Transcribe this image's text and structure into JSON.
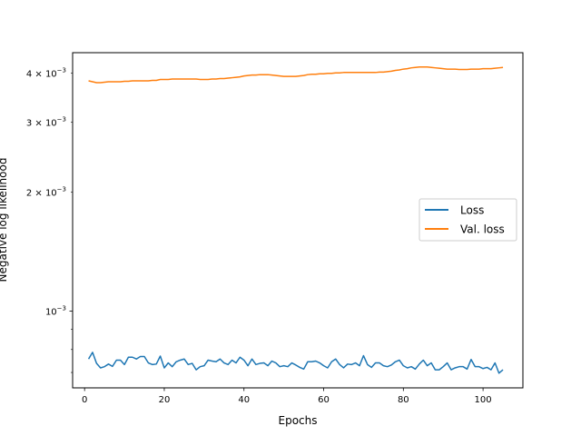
{
  "chart_data": {
    "type": "line",
    "xlabel": "Epochs",
    "ylabel": "Negative log likelihood",
    "xlim": [
      -3,
      110
    ],
    "ylim": [
      0.00064,
      0.0045
    ],
    "yscale": "log",
    "xticks": [
      0,
      20,
      40,
      60,
      80,
      100
    ],
    "xtick_labels": [
      "0",
      "20",
      "40",
      "60",
      "80",
      "100"
    ],
    "yticks_major": [
      0.001
    ],
    "yticks_major_labels": [
      {
        "mant": "10",
        "exp": "−3"
      }
    ],
    "yticks_minor": [
      0.0007,
      0.0008,
      0.0009,
      0.002,
      0.003,
      0.004
    ],
    "yticks_minor_labels": [
      {
        "value": 0.002,
        "mant": "2 × 10",
        "exp": "−3"
      },
      {
        "value": 0.003,
        "mant": "3 × 10",
        "exp": "−3"
      },
      {
        "value": 0.004,
        "mant": "4 × 10",
        "exp": "−3"
      }
    ],
    "legend": {
      "placement": "center-right",
      "entries": [
        "Loss",
        "Val. loss"
      ]
    },
    "grid": false,
    "x": [
      1,
      2,
      3,
      4,
      5,
      6,
      7,
      8,
      9,
      10,
      11,
      12,
      13,
      14,
      15,
      16,
      17,
      18,
      19,
      20,
      21,
      22,
      23,
      24,
      25,
      26,
      27,
      28,
      29,
      30,
      31,
      32,
      33,
      34,
      35,
      36,
      37,
      38,
      39,
      40,
      41,
      42,
      43,
      44,
      45,
      46,
      47,
      48,
      49,
      50,
      51,
      52,
      53,
      54,
      55,
      56,
      57,
      58,
      59,
      60,
      61,
      62,
      63,
      64,
      65,
      66,
      67,
      68,
      69,
      70,
      71,
      72,
      73,
      74,
      75,
      76,
      77,
      78,
      79,
      80,
      81,
      82,
      83,
      84,
      85,
      86,
      87,
      88,
      89,
      90,
      91,
      92,
      93,
      94,
      95,
      96,
      97,
      98,
      99,
      100,
      101,
      102,
      103,
      104,
      105
    ],
    "series": [
      {
        "name": "Loss",
        "color": "#1f77b4",
        "values": [
          0.000757,
          0.000787,
          0.000738,
          0.000719,
          0.000724,
          0.000735,
          0.000725,
          0.000752,
          0.000752,
          0.000733,
          0.000765,
          0.000765,
          0.000757,
          0.000768,
          0.000768,
          0.00074,
          0.000733,
          0.000735,
          0.00077,
          0.000719,
          0.00074,
          0.000724,
          0.000745,
          0.000752,
          0.000757,
          0.000733,
          0.000738,
          0.000711,
          0.000724,
          0.000728,
          0.000752,
          0.000748,
          0.000745,
          0.000757,
          0.00074,
          0.000733,
          0.000752,
          0.00074,
          0.000765,
          0.000752,
          0.000728,
          0.000757,
          0.000733,
          0.000738,
          0.00074,
          0.000728,
          0.000748,
          0.00074,
          0.000724,
          0.000728,
          0.000724,
          0.00074,
          0.000731,
          0.000721,
          0.000714,
          0.000745,
          0.000745,
          0.000748,
          0.00074,
          0.000728,
          0.000719,
          0.000745,
          0.000757,
          0.000733,
          0.000719,
          0.000735,
          0.000733,
          0.00074,
          0.000728,
          0.000772,
          0.000733,
          0.000721,
          0.00074,
          0.00074,
          0.000728,
          0.000724,
          0.000731,
          0.000745,
          0.000752,
          0.000728,
          0.000719,
          0.000724,
          0.000714,
          0.000735,
          0.000752,
          0.000728,
          0.00074,
          0.000711,
          0.000711,
          0.000724,
          0.00074,
          0.000711,
          0.000719,
          0.000724,
          0.000724,
          0.000714,
          0.000755,
          0.000724,
          0.000724,
          0.000716,
          0.000721,
          0.000711,
          0.00074,
          0.000697,
          0.000711
        ]
      },
      {
        "name": "Val. loss",
        "color": "#ff7f0e",
        "values": [
          0.00382,
          0.0038,
          0.00378,
          0.00378,
          0.00379,
          0.0038,
          0.0038,
          0.0038,
          0.0038,
          0.00381,
          0.00381,
          0.00382,
          0.00382,
          0.00382,
          0.00382,
          0.00382,
          0.00383,
          0.00383,
          0.00385,
          0.00385,
          0.00385,
          0.00386,
          0.00386,
          0.00386,
          0.00386,
          0.00386,
          0.00386,
          0.00386,
          0.00385,
          0.00385,
          0.00385,
          0.00386,
          0.00386,
          0.00387,
          0.00387,
          0.00388,
          0.00389,
          0.0039,
          0.00391,
          0.00393,
          0.00394,
          0.00395,
          0.00395,
          0.00396,
          0.00396,
          0.00396,
          0.00395,
          0.00394,
          0.00393,
          0.00392,
          0.00392,
          0.00392,
          0.00392,
          0.00393,
          0.00394,
          0.00396,
          0.00397,
          0.00397,
          0.00398,
          0.00398,
          0.00399,
          0.00399,
          0.004,
          0.004,
          0.00401,
          0.00401,
          0.00401,
          0.00401,
          0.00401,
          0.00401,
          0.00401,
          0.00401,
          0.00401,
          0.00402,
          0.00402,
          0.00403,
          0.00404,
          0.00406,
          0.00407,
          0.00409,
          0.0041,
          0.00412,
          0.00413,
          0.00414,
          0.00414,
          0.00414,
          0.00413,
          0.00412,
          0.00411,
          0.0041,
          0.00409,
          0.00409,
          0.00409,
          0.00408,
          0.00408,
          0.00408,
          0.00409,
          0.00409,
          0.00409,
          0.0041,
          0.0041,
          0.0041,
          0.00411,
          0.00412,
          0.00413
        ]
      }
    ]
  }
}
